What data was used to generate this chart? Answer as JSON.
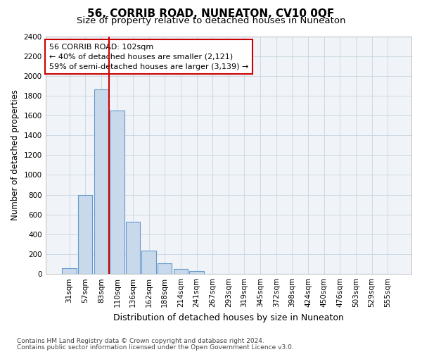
{
  "title": "56, CORRIB ROAD, NUNEATON, CV10 0QF",
  "subtitle": "Size of property relative to detached houses in Nuneaton",
  "xlabel": "Distribution of detached houses by size in Nuneaton",
  "ylabel": "Number of detached properties",
  "categories": [
    "31sqm",
    "57sqm",
    "83sqm",
    "110sqm",
    "136sqm",
    "162sqm",
    "188sqm",
    "214sqm",
    "241sqm",
    "267sqm",
    "293sqm",
    "319sqm",
    "345sqm",
    "372sqm",
    "398sqm",
    "424sqm",
    "450sqm",
    "476sqm",
    "503sqm",
    "529sqm",
    "555sqm"
  ],
  "values": [
    55,
    795,
    1860,
    1650,
    530,
    235,
    105,
    50,
    32,
    0,
    0,
    0,
    0,
    0,
    0,
    0,
    0,
    0,
    0,
    0,
    0
  ],
  "bar_color": "#c8d9eb",
  "bar_edge_color": "#6699cc",
  "vline_color": "#cc0000",
  "vline_pos": 2.5,
  "annotation_text": "56 CORRIB ROAD: 102sqm\n← 40% of detached houses are smaller (2,121)\n59% of semi-detached houses are larger (3,139) →",
  "annotation_box_facecolor": "#ffffff",
  "annotation_box_edgecolor": "#cc0000",
  "ylim": [
    0,
    2400
  ],
  "yticks": [
    0,
    200,
    400,
    600,
    800,
    1000,
    1200,
    1400,
    1600,
    1800,
    2000,
    2200,
    2400
  ],
  "footnote1": "Contains HM Land Registry data © Crown copyright and database right 2024.",
  "footnote2": "Contains public sector information licensed under the Open Government Licence v3.0.",
  "fig_facecolor": "#ffffff",
  "plot_facecolor": "#f0f4f8",
  "grid_color": "#c8d4e0",
  "title_fontsize": 11,
  "subtitle_fontsize": 9.5,
  "xlabel_fontsize": 9,
  "ylabel_fontsize": 8.5,
  "tick_fontsize": 7.5,
  "annot_fontsize": 8,
  "footnote_fontsize": 6.5
}
